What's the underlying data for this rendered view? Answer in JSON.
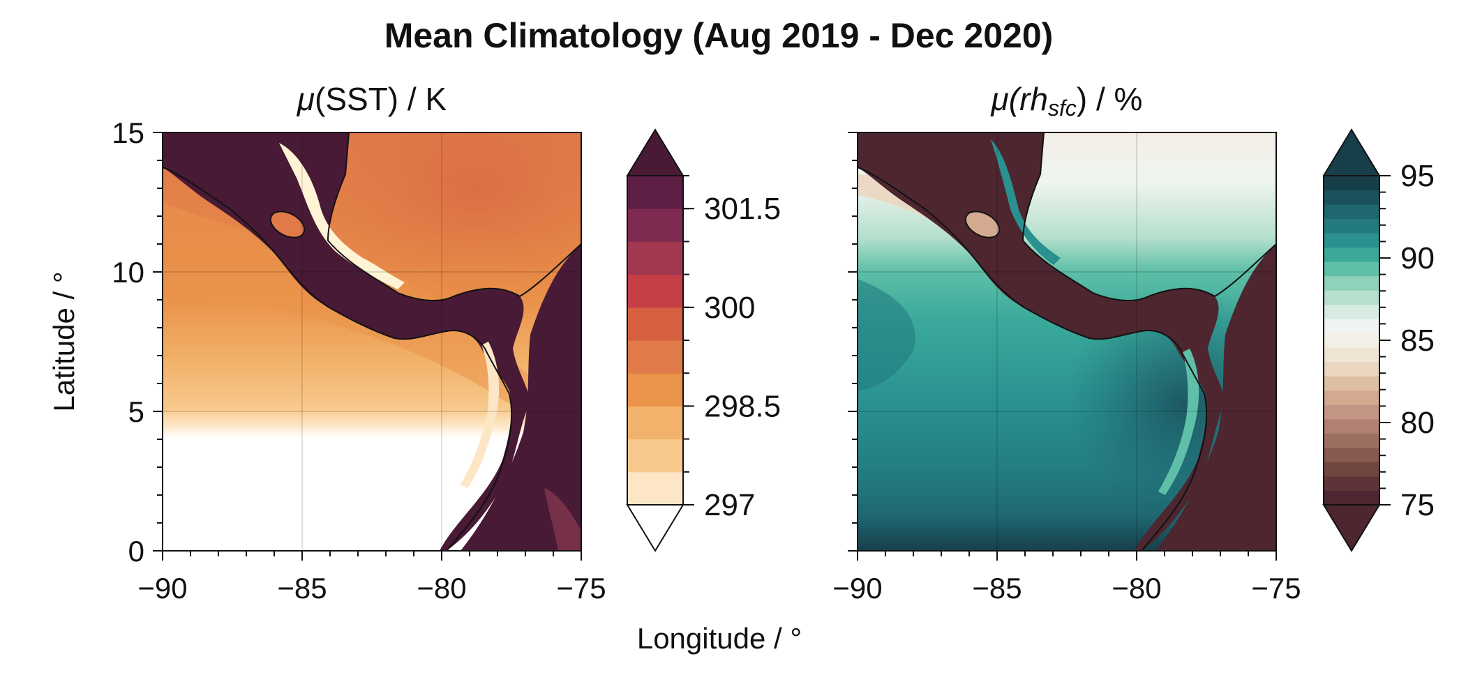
{
  "chart_data": [
    {
      "type": "heatmap",
      "panel": "left",
      "title_prefix": "μ",
      "title_var": "(SST)",
      "title_suffix": " / K",
      "xlim": [
        -90,
        -75
      ],
      "ylim": [
        0,
        15
      ],
      "x_ticks": [
        -90,
        -85,
        -80,
        -75
      ],
      "x_tick_labels": [
        "−90",
        "−85",
        "−80",
        "−75"
      ],
      "y_ticks": [
        0,
        5,
        10,
        15
      ],
      "y_tick_labels": [
        "0",
        "5",
        "10",
        "15"
      ],
      "grid": true,
      "colorbar": {
        "ticks": [
          297,
          298.5,
          300,
          301.5
        ],
        "tick_labels": [
          "297",
          "298.5",
          "300",
          "301.5"
        ],
        "range": [
          297,
          302
        ],
        "level_step": 0.5,
        "extend": "both",
        "colors": [
          "#fde6c6",
          "#f8c98c",
          "#f2b26b",
          "#ea934a",
          "#e07a48",
          "#d6603f",
          "#c43f46",
          "#a23850",
          "#7f2a50",
          "#5e1f44"
        ],
        "under_color": "#ffffff",
        "over_color": "#481a35"
      }
    },
    {
      "type": "heatmap",
      "panel": "right",
      "title_prefix": "μ",
      "title_var": "(rh",
      "title_sub": "sfc",
      "title_suffix": ") / %",
      "xlim": [
        -90,
        -75
      ],
      "ylim": [
        0,
        15
      ],
      "x_ticks": [
        -90,
        -85,
        -80,
        -75
      ],
      "x_tick_labels": [
        "−90",
        "−85",
        "−80",
        "−75"
      ],
      "y_ticks": [
        0,
        5,
        10,
        15
      ],
      "grid": true,
      "colorbar": {
        "ticks": [
          75,
          80,
          85,
          90,
          95
        ],
        "tick_labels": [
          "75",
          "80",
          "85",
          "90",
          "95"
        ],
        "range": [
          75,
          95
        ],
        "level_step": 1,
        "extend": "both",
        "colors": [
          "#4d2630",
          "#5e3438",
          "#724640",
          "#87594f",
          "#9d6e62",
          "#b08072",
          "#c29683",
          "#d3aa90",
          "#dfbfa2",
          "#ead6c1",
          "#f0e5d5",
          "#f3efe7",
          "#eef4ef",
          "#d6ebe1",
          "#b6e0cd",
          "#8fd1bb",
          "#5fbfa8",
          "#3aa99a",
          "#2a9090",
          "#237b81",
          "#1e6670",
          "#1b515d",
          "#173f4a"
        ],
        "under_color": "#4d2630",
        "over_color": "#173f4a"
      }
    }
  ],
  "figure": {
    "title": "Mean Climatology (Aug 2019 - Dec 2020)",
    "ylabel": "Latitude / °",
    "xlabel": "Longitude / °"
  }
}
